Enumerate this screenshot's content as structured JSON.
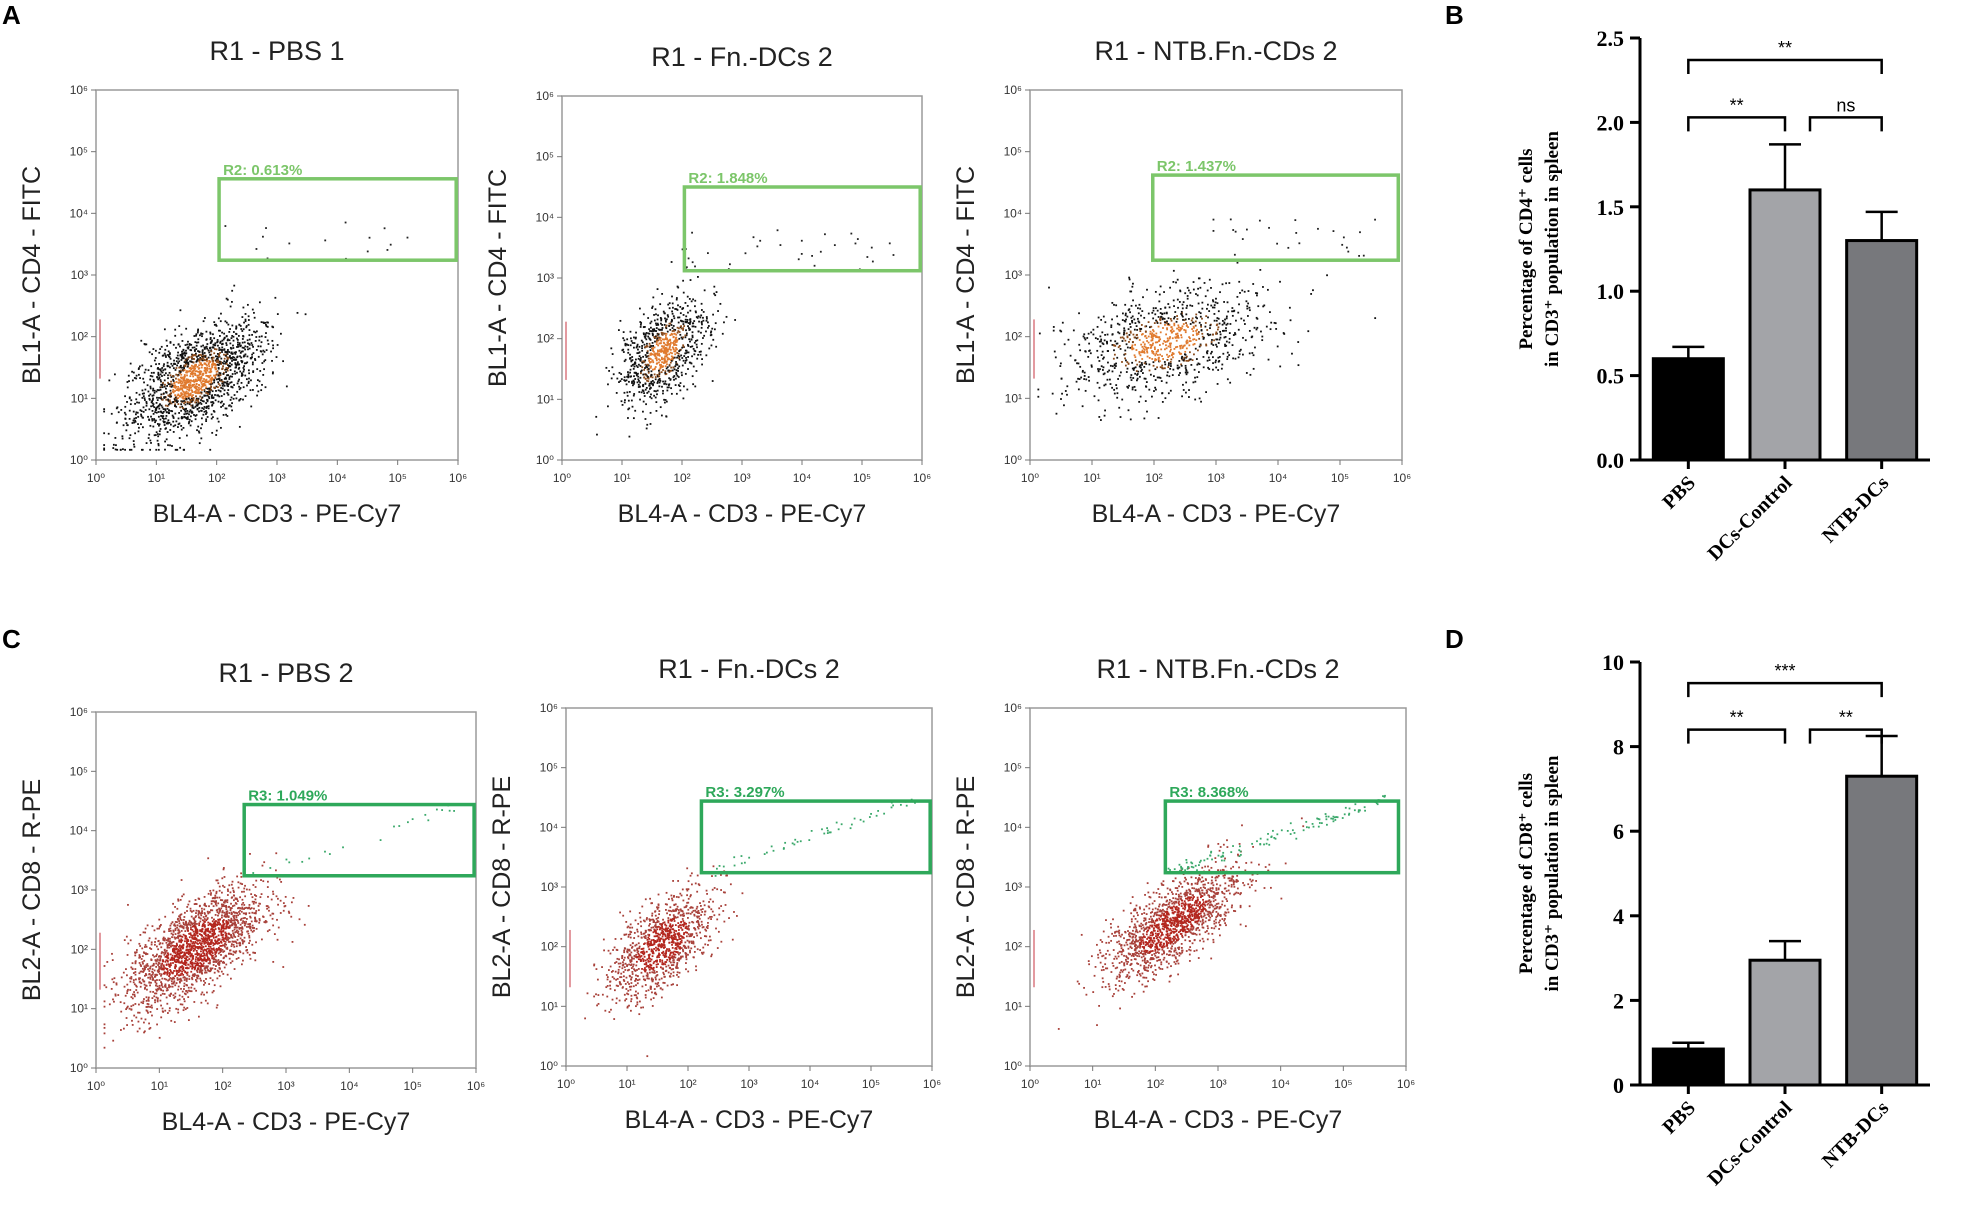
{
  "panel_letters": {
    "a": "A",
    "b": "B",
    "c": "C",
    "d": "D"
  },
  "colors": {
    "gate_cd4": "#7cc66a",
    "gate_cd8": "#2ea85a",
    "dots_cd4_dense": "#e07a2e",
    "dots_cd8": "#b3261e",
    "bar_pbs": "#000000",
    "bar_dcs_control": "#a3a4a8",
    "bar_ntb_dcs": "#77787c"
  },
  "log_tick_labels": [
    "10⁰",
    "10¹",
    "10²",
    "10³",
    "10⁴",
    "10⁵",
    "10⁶"
  ],
  "flow_plots": [
    {
      "id": "a1",
      "title": "R1 - PBS 1",
      "ylabel": "BL1-A - CD4 - FITC",
      "xlabel": "BL4-A - CD3 - PE-Cy7",
      "gate_label": "R2: 0.613%",
      "gate_percent": 0.613,
      "scheme": "cd4"
    },
    {
      "id": "a2",
      "title": "R1 - Fn.-DCs 2",
      "ylabel": "BL1-A - CD4 - FITC",
      "xlabel": "BL4-A - CD3 - PE-Cy7",
      "gate_label": "R2: 1.848%",
      "gate_percent": 1.848,
      "scheme": "cd4"
    },
    {
      "id": "a3",
      "title": "R1 - NTB.Fn.-CDs 2",
      "ylabel": "BL1-A - CD4 - FITC",
      "xlabel": "BL4-A - CD3 - PE-Cy7",
      "gate_label": "R2: 1.437%",
      "gate_percent": 1.437,
      "scheme": "cd4"
    },
    {
      "id": "c1",
      "title": "R1 - PBS 2",
      "ylabel": "BL2-A - CD8 - R-PE",
      "xlabel": "BL4-A - CD3 - PE-Cy7",
      "gate_label": "R3: 1.049%",
      "gate_percent": 1.049,
      "scheme": "cd8"
    },
    {
      "id": "c2",
      "title": "R1 - Fn.-DCs 2",
      "ylabel": "BL2-A - CD8 - R-PE",
      "xlabel": "BL4-A - CD3 - PE-Cy7",
      "gate_label": "R3: 3.297%",
      "gate_percent": 3.297,
      "scheme": "cd8"
    },
    {
      "id": "c3",
      "title": "R1 - NTB.Fn.-CDs 2",
      "ylabel": "BL2-A - CD8 - R-PE",
      "xlabel": "BL4-A - CD3 - PE-Cy7",
      "gate_label": "R3: 8.368%",
      "gate_percent": 8.368,
      "scheme": "cd8"
    }
  ],
  "chart_data": [
    {
      "panel": "B",
      "type": "bar",
      "categories": [
        "PBS",
        "DCs-Control",
        "NTB-DCs"
      ],
      "values": [
        0.6,
        1.6,
        1.3
      ],
      "errors": [
        0.07,
        0.27,
        0.17
      ],
      "ylim": [
        0,
        2.5
      ],
      "yticks": [
        0.0,
        0.5,
        1.0,
        1.5,
        2.0,
        2.5
      ],
      "ytick_labels": [
        "0.0",
        "0.5",
        "1.0",
        "1.5",
        "2.0",
        "2.5"
      ],
      "ylabel_line1": "Percentage of CD4⁺ cells",
      "ylabel_line2": "in CD3⁺ population in spleen",
      "significance": [
        {
          "from": 0,
          "to": 2,
          "label": "**",
          "level": 2.37
        },
        {
          "from": 0,
          "to": 1,
          "label": "**",
          "level": 2.03
        },
        {
          "from": 1,
          "to": 2,
          "label": "ns",
          "level": 2.03
        }
      ]
    },
    {
      "panel": "D",
      "type": "bar",
      "categories": [
        "PBS",
        "DCs-Control",
        "NTB-DCs"
      ],
      "values": [
        0.85,
        2.95,
        7.3
      ],
      "errors": [
        0.15,
        0.45,
        0.95
      ],
      "ylim": [
        0,
        10
      ],
      "yticks": [
        0,
        2,
        4,
        6,
        8,
        10
      ],
      "ytick_labels": [
        "0",
        "2",
        "4",
        "6",
        "8",
        "10"
      ],
      "ylabel_line1": "Percentage of CD8⁺ cells",
      "ylabel_line2": "in CD3⁺ population in spleen",
      "significance": [
        {
          "from": 0,
          "to": 2,
          "label": "***",
          "level": 9.5
        },
        {
          "from": 0,
          "to": 1,
          "label": "**",
          "level": 8.4
        },
        {
          "from": 1,
          "to": 2,
          "label": "**",
          "level": 8.4
        }
      ]
    }
  ]
}
